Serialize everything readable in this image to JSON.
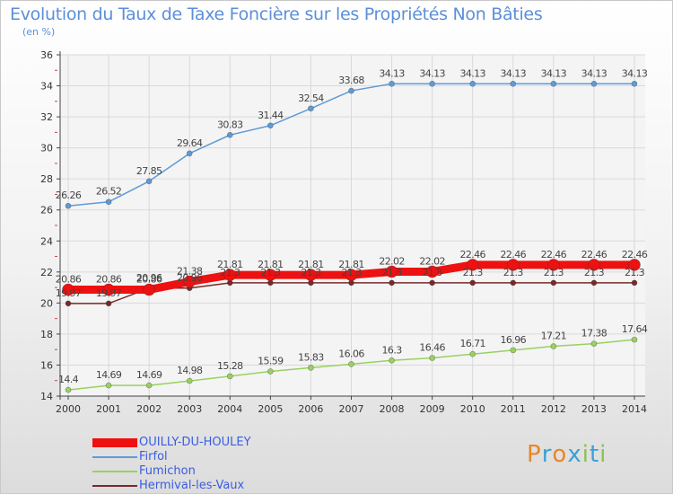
{
  "title": "Evolution du Taux de Taxe Foncière sur les Propriétés Non Bâties",
  "unit_label": "(en %)",
  "logo": {
    "text": "Proxiti",
    "letters": [
      "P",
      "r",
      "o",
      "x",
      "i",
      "t",
      "i"
    ],
    "colors": [
      "#e8862a",
      "#3aa0d8",
      "#e8862a",
      "#3aa0d8",
      "#8bc34a",
      "#3aa0d8",
      "#8bc34a"
    ]
  },
  "chart_data": {
    "type": "line",
    "title": "Evolution du Taux de Taxe Foncière sur les Propriétés Non Bâties",
    "ylabel": "(en %)",
    "xlabel": "",
    "x": [
      2000,
      2001,
      2002,
      2003,
      2004,
      2005,
      2006,
      2007,
      2008,
      2009,
      2010,
      2011,
      2012,
      2013,
      2014
    ],
    "ylim": [
      14,
      36
    ],
    "yticks": [
      14,
      16,
      18,
      20,
      22,
      24,
      26,
      28,
      30,
      32,
      34,
      36
    ],
    "grid": true,
    "legend_position": "bottom-left",
    "series": [
      {
        "name": "OUILLY-DU-HOULEY",
        "color": "#ee1111",
        "values": [
          20.86,
          20.86,
          20.86,
          21.38,
          21.81,
          21.81,
          21.81,
          21.81,
          22.02,
          22.02,
          22.46,
          22.46,
          22.46,
          22.46,
          22.46
        ],
        "labels": [
          "20.86",
          "20.86",
          "20.86",
          "21.38",
          "21.81",
          "21.81",
          "21.81",
          "21.81",
          "22.02",
          "22.02",
          "22.46",
          "22.46",
          "22.46",
          "22.46",
          "22.46"
        ]
      },
      {
        "name": "Firfol",
        "color": "#5f9bd5",
        "values": [
          26.26,
          26.52,
          27.85,
          29.64,
          30.83,
          31.44,
          32.54,
          33.68,
          34.13,
          34.13,
          34.13,
          34.13,
          34.13,
          34.13,
          34.13
        ],
        "labels": [
          "26.26",
          "26.52",
          "27.85",
          "29.64",
          "30.83",
          "31.44",
          "32.54",
          "33.68",
          "34.13",
          "34.13",
          "34.13",
          "34.13",
          "34.13",
          "34.13",
          "34.13"
        ]
      },
      {
        "name": "Fumichon",
        "color": "#99d161",
        "values": [
          14.4,
          14.69,
          14.69,
          14.98,
          15.28,
          15.59,
          15.83,
          16.06,
          16.3,
          16.46,
          16.71,
          16.96,
          17.21,
          17.38,
          17.64
        ],
        "labels": [
          "14.4",
          "14.69",
          "14.69",
          "14.98",
          "15.28",
          "15.59",
          "15.83",
          "16.06",
          "16.3",
          "16.46",
          "16.71",
          "16.96",
          "17.21",
          "17.38",
          "17.64"
        ]
      },
      {
        "name": "Hermival-les-Vaux",
        "color": "#7a2828",
        "values": [
          19.97,
          19.97,
          20.96,
          20.96,
          21.3,
          21.3,
          21.3,
          21.3,
          21.3,
          21.3,
          21.3,
          21.3,
          21.3,
          21.3,
          21.3
        ],
        "labels": [
          "19.97",
          "19.97",
          "20.96",
          "20.96",
          "21.3",
          "21.3",
          "21.3",
          "21.3",
          "21.3",
          "21.3",
          "21.3",
          "21.3",
          "21.3",
          "21.3",
          "21.3"
        ]
      }
    ]
  }
}
